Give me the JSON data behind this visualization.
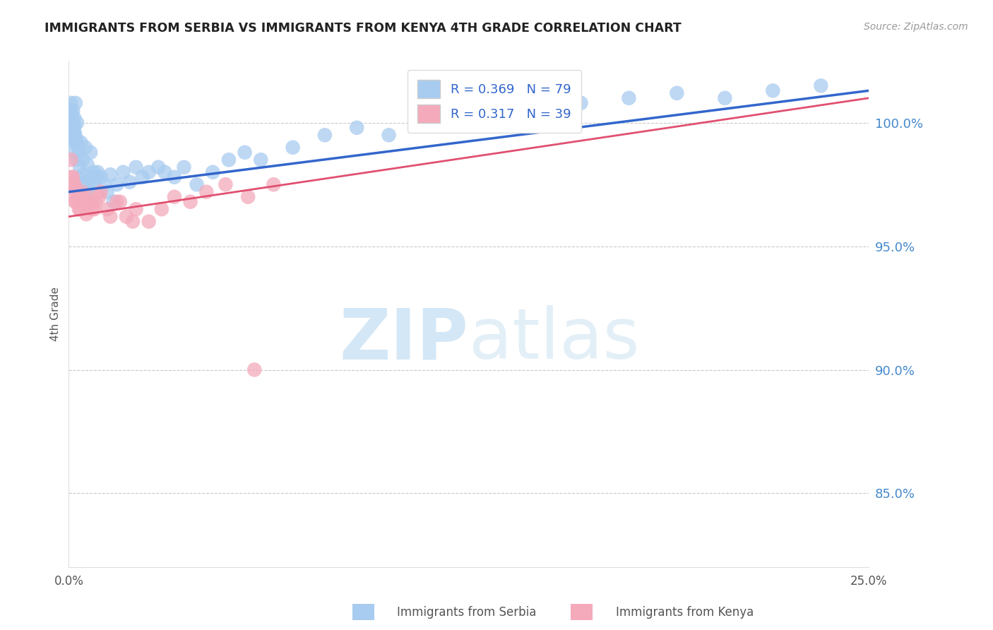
{
  "title": "IMMIGRANTS FROM SERBIA VS IMMIGRANTS FROM KENYA 4TH GRADE CORRELATION CHART",
  "source": "Source: ZipAtlas.com",
  "ylabel": "4th Grade",
  "legend_serbia": {
    "R": 0.369,
    "N": 79,
    "label": "Immigrants from Serbia"
  },
  "legend_kenya": {
    "R": 0.317,
    "N": 39,
    "label": "Immigrants from Kenya"
  },
  "serbia_color": "#A8CCF0",
  "kenya_color": "#F4AABB",
  "serbia_line_color": "#3366CC",
  "kenya_line_color": "#E05070",
  "background_color": "#FFFFFF",
  "xlim": [
    0.0,
    25.0
  ],
  "ylim": [
    82.0,
    102.5
  ],
  "yticks": [
    85.0,
    90.0,
    95.0,
    100.0
  ],
  "ytick_labels": [
    "85.0%",
    "90.0%",
    "95.0%",
    "100.0%"
  ],
  "serbia_x": [
    0.05,
    0.06,
    0.07,
    0.08,
    0.09,
    0.1,
    0.11,
    0.12,
    0.13,
    0.14,
    0.15,
    0.16,
    0.18,
    0.2,
    0.22,
    0.25,
    0.28,
    0.3,
    0.35,
    0.4,
    0.45,
    0.5,
    0.55,
    0.6,
    0.65,
    0.7,
    0.8,
    0.9,
    1.0,
    1.1,
    1.2,
    1.3,
    1.5,
    1.7,
    1.9,
    2.1,
    2.3,
    2.5,
    2.8,
    3.0,
    3.3,
    3.6,
    4.0,
    4.5,
    5.0,
    5.5,
    6.0,
    7.0,
    8.0,
    9.0,
    10.0,
    11.5,
    13.0,
    14.5,
    16.0,
    17.5,
    19.0,
    20.5,
    22.0,
    23.5,
    0.07,
    0.09,
    0.11,
    0.13,
    0.15,
    0.17,
    0.19,
    0.21,
    0.23,
    0.26,
    0.32,
    0.38,
    0.44,
    0.52,
    0.58,
    0.68,
    0.78,
    0.88,
    1.4
  ],
  "serbia_y": [
    100.2,
    100.5,
    99.8,
    100.1,
    99.5,
    100.3,
    99.7,
    100.0,
    99.3,
    99.8,
    99.6,
    99.2,
    99.9,
    98.8,
    99.4,
    98.5,
    99.1,
    97.8,
    98.2,
    97.5,
    97.9,
    97.2,
    97.6,
    97.0,
    97.4,
    97.8,
    97.5,
    98.0,
    97.8,
    97.5,
    97.2,
    97.9,
    97.5,
    98.0,
    97.6,
    98.2,
    97.8,
    98.0,
    98.2,
    98.0,
    97.8,
    98.2,
    97.5,
    98.0,
    98.5,
    98.8,
    98.5,
    99.0,
    99.5,
    99.8,
    99.5,
    100.0,
    100.2,
    100.5,
    100.8,
    101.0,
    101.2,
    101.0,
    101.3,
    101.5,
    100.8,
    100.3,
    99.8,
    100.5,
    99.5,
    100.2,
    99.6,
    100.8,
    99.3,
    100.0,
    98.8,
    99.2,
    98.5,
    99.0,
    98.3,
    98.8,
    98.0,
    97.8,
    96.8
  ],
  "kenya_x": [
    0.07,
    0.1,
    0.14,
    0.18,
    0.22,
    0.28,
    0.35,
    0.42,
    0.5,
    0.6,
    0.72,
    0.85,
    1.0,
    1.2,
    1.5,
    1.8,
    2.1,
    2.5,
    2.9,
    3.3,
    3.8,
    4.3,
    4.9,
    5.6,
    6.4,
    5.8,
    0.12,
    0.16,
    0.2,
    0.25,
    0.32,
    0.4,
    0.55,
    0.68,
    0.8,
    0.95,
    1.3,
    1.6,
    2.0
  ],
  "kenya_y": [
    98.5,
    97.8,
    97.2,
    97.5,
    96.8,
    97.0,
    96.5,
    97.2,
    96.8,
    97.0,
    96.5,
    96.8,
    97.2,
    96.5,
    96.8,
    96.2,
    96.5,
    96.0,
    96.5,
    97.0,
    96.8,
    97.2,
    97.5,
    97.0,
    97.5,
    90.0,
    97.8,
    97.5,
    96.8,
    97.2,
    96.5,
    97.0,
    96.3,
    96.8,
    96.5,
    97.0,
    96.2,
    96.8,
    96.0
  ],
  "serbia_trend": [
    97.2,
    101.3
  ],
  "kenya_trend": [
    96.2,
    101.0
  ],
  "watermark_zip": "ZIP",
  "watermark_atlas": "atlas"
}
